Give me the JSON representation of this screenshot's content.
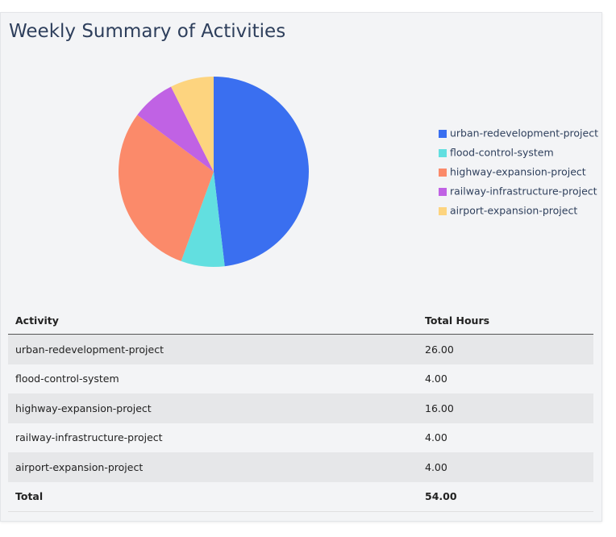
{
  "chart_data": {
    "type": "pie",
    "title": "Weekly Summary of Activities",
    "categories": [
      "urban-redevelopment-project",
      "flood-control-system",
      "highway-expansion-project",
      "railway-infrastructure-project",
      "airport-expansion-project"
    ],
    "values": [
      26,
      4,
      16,
      4,
      4
    ],
    "colors": [
      "#3a6ff0",
      "#62dfe0",
      "#fb8a6a",
      "#c062e4",
      "#fdd47f"
    ]
  },
  "table": {
    "columns": [
      "Activity",
      "Total Hours"
    ],
    "rows": [
      [
        "urban-redevelopment-project",
        "26.00"
      ],
      [
        "flood-control-system",
        "4.00"
      ],
      [
        "highway-expansion-project",
        "16.00"
      ],
      [
        "railway-infrastructure-project",
        "4.00"
      ],
      [
        "airport-expansion-project",
        "4.00"
      ]
    ],
    "total": [
      "Total",
      "54.00"
    ]
  }
}
